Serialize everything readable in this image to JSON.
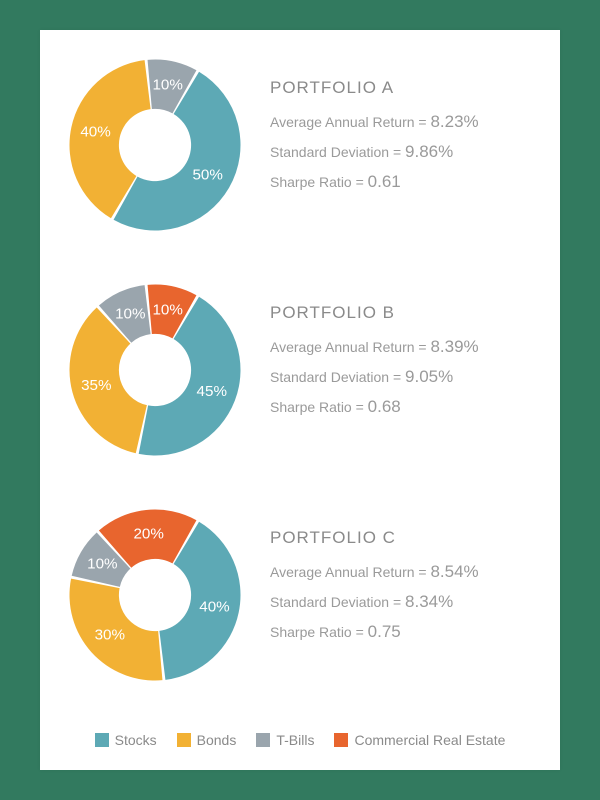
{
  "background_color": "#327a5f",
  "card_color": "#ffffff",
  "text_color_title": "#8a8a8a",
  "text_color_metric": "#9a9a9a",
  "slice_label_color": "#ffffff",
  "title_fontsize": 17,
  "metric_label_fontsize": 14,
  "metric_value_fontsize": 17,
  "slice_label_fontsize": 16,
  "legend_fontsize": 14,
  "donut": {
    "outer_radius": 90,
    "inner_radius": 38,
    "gap_deg": 2,
    "start_angle_deg": 30
  },
  "categories": [
    {
      "key": "stocks",
      "label": "Stocks",
      "color": "#5da9b5"
    },
    {
      "key": "bonds",
      "label": "Bonds",
      "color": "#f2b134"
    },
    {
      "key": "tbills",
      "label": "T-Bills",
      "color": "#9aa5ad"
    },
    {
      "key": "cre",
      "label": "Commercial Real Estate",
      "color": "#e8652e"
    }
  ],
  "portfolios": [
    {
      "title": "PORTFOLIO A",
      "slices": [
        {
          "key": "stocks",
          "pct": 50,
          "label": "50%"
        },
        {
          "key": "bonds",
          "pct": 40,
          "label": "40%"
        },
        {
          "key": "tbills",
          "pct": 10,
          "label": "10%"
        }
      ],
      "metrics": [
        {
          "label": "Average Annual Return = ",
          "value": "8.23%"
        },
        {
          "label": "Standard Deviation = ",
          "value": "9.86%"
        },
        {
          "label": "Sharpe Ratio = ",
          "value": "0.61"
        }
      ]
    },
    {
      "title": "PORTFOLIO B",
      "slices": [
        {
          "key": "stocks",
          "pct": 45,
          "label": "45%"
        },
        {
          "key": "bonds",
          "pct": 35,
          "label": "35%"
        },
        {
          "key": "tbills",
          "pct": 10,
          "label": "10%"
        },
        {
          "key": "cre",
          "pct": 10,
          "label": "10%"
        }
      ],
      "metrics": [
        {
          "label": "Average Annual Return = ",
          "value": "8.39%"
        },
        {
          "label": "Standard Deviation = ",
          "value": "9.05%"
        },
        {
          "label": "Sharpe Ratio = ",
          "value": "0.68"
        }
      ]
    },
    {
      "title": "PORTFOLIO C",
      "slices": [
        {
          "key": "stocks",
          "pct": 40,
          "label": "40%"
        },
        {
          "key": "bonds",
          "pct": 30,
          "label": "30%"
        },
        {
          "key": "tbills",
          "pct": 10,
          "label": "10%"
        },
        {
          "key": "cre",
          "pct": 20,
          "label": "20%"
        }
      ],
      "metrics": [
        {
          "label": "Average Annual Return = ",
          "value": "8.54%"
        },
        {
          "label": "Standard Deviation = ",
          "value": "8.34%"
        },
        {
          "label": "Sharpe Ratio = ",
          "value": "0.75"
        }
      ]
    }
  ]
}
